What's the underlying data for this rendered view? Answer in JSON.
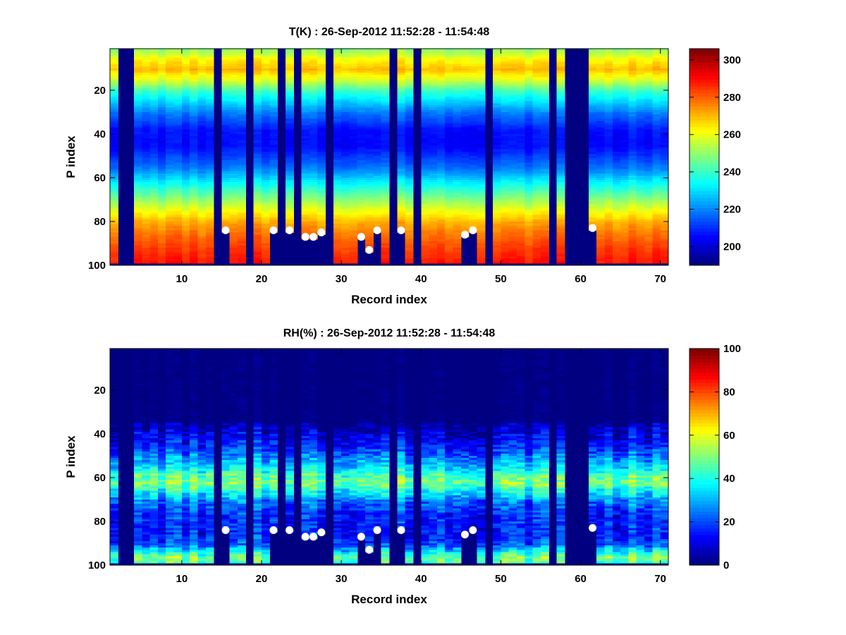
{
  "chart_data": [
    {
      "type": "heatmap",
      "title": "T(K) : 26-Sep-2012 11:52:28 - 11:54:48",
      "xlabel": "Record index",
      "ylabel": "P index",
      "x_range": [
        1,
        71
      ],
      "y_range": [
        1,
        100
      ],
      "y_reversed": true,
      "x_ticks": [
        10,
        20,
        30,
        40,
        50,
        60,
        70
      ],
      "y_ticks": [
        20,
        40,
        60,
        80,
        100
      ],
      "colormap": "jet",
      "clim": [
        190,
        306
      ],
      "colorbar_ticks": [
        200,
        220,
        240,
        260,
        280,
        300
      ],
      "missing_records": [
        2,
        3,
        14,
        18,
        22,
        24,
        28,
        36,
        39,
        48,
        56,
        58,
        59,
        60
      ],
      "profile_keypoints": {
        "p_index": [
          1,
          5,
          10,
          15,
          20,
          30,
          38,
          45,
          55,
          65,
          75,
          80,
          85,
          90,
          95,
          98
        ],
        "value": [
          250,
          262,
          270,
          258,
          240,
          218,
          206,
          205,
          218,
          240,
          262,
          272,
          278,
          283,
          287,
          289
        ]
      },
      "markers": [
        {
          "record": 15,
          "p_index": 84
        },
        {
          "record": 21,
          "p_index": 84
        },
        {
          "record": 23,
          "p_index": 84
        },
        {
          "record": 25,
          "p_index": 87
        },
        {
          "record": 26,
          "p_index": 87
        },
        {
          "record": 27,
          "p_index": 85
        },
        {
          "record": 32,
          "p_index": 87
        },
        {
          "record": 33,
          "p_index": 93
        },
        {
          "record": 34,
          "p_index": 84
        },
        {
          "record": 37,
          "p_index": 84
        },
        {
          "record": 45,
          "p_index": 86
        },
        {
          "record": 46,
          "p_index": 84
        },
        {
          "record": 61,
          "p_index": 83
        }
      ]
    },
    {
      "type": "heatmap",
      "title": "RH(%) : 26-Sep-2012 11:52:28 - 11:54:48",
      "xlabel": "Record index",
      "ylabel": "P index",
      "x_range": [
        1,
        71
      ],
      "y_range": [
        1,
        100
      ],
      "y_reversed": true,
      "x_ticks": [
        10,
        20,
        30,
        40,
        50,
        60,
        70
      ],
      "y_ticks": [
        20,
        40,
        60,
        80,
        100
      ],
      "colormap": "jet",
      "clim": [
        0,
        100
      ],
      "colorbar_ticks": [
        0,
        20,
        40,
        60,
        80,
        100
      ],
      "missing_records": [
        2,
        3,
        14,
        18,
        22,
        24,
        28,
        36,
        39,
        48,
        56,
        58,
        59,
        60
      ],
      "profile_keypoints": {
        "p_index": [
          1,
          34,
          40,
          45,
          50,
          55,
          58,
          62,
          66,
          70,
          75,
          80,
          85,
          90,
          93,
          96,
          98
        ],
        "value": [
          0,
          2,
          10,
          15,
          25,
          35,
          45,
          50,
          38,
          25,
          18,
          15,
          15,
          20,
          35,
          50,
          45
        ]
      },
      "markers": [
        {
          "record": 15,
          "p_index": 84
        },
        {
          "record": 21,
          "p_index": 84
        },
        {
          "record": 23,
          "p_index": 84
        },
        {
          "record": 25,
          "p_index": 87
        },
        {
          "record": 26,
          "p_index": 87
        },
        {
          "record": 27,
          "p_index": 85
        },
        {
          "record": 32,
          "p_index": 87
        },
        {
          "record": 33,
          "p_index": 93
        },
        {
          "record": 34,
          "p_index": 84
        },
        {
          "record": 37,
          "p_index": 84
        },
        {
          "record": 45,
          "p_index": 86
        },
        {
          "record": 46,
          "p_index": 84
        },
        {
          "record": 61,
          "p_index": 83
        }
      ]
    }
  ]
}
